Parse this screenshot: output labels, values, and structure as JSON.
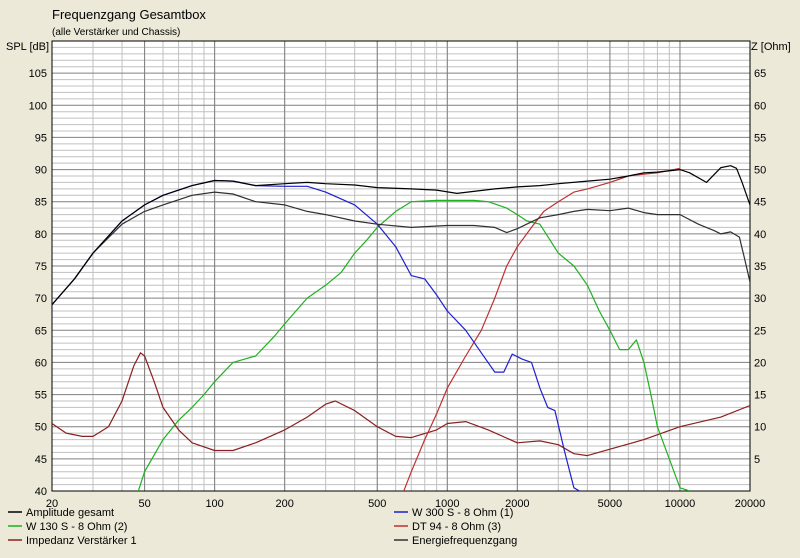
{
  "chart_data": {
    "type": "line",
    "title": "Frequenzgang Gesamtbox",
    "subtitle": "(alle Verstärker und Chassis)",
    "ylabel_left": "SPL [dB]",
    "ylabel_right": "Z [Ohm]",
    "xscale": "log",
    "xlim": [
      20,
      20000
    ],
    "ylim_left": [
      40,
      110
    ],
    "ylim_right": [
      0,
      70
    ],
    "grid": true,
    "legend_position": "bottom",
    "x_tick_labels": [
      "20",
      "50",
      "100",
      "200",
      "500",
      "1000",
      "2000",
      "5000",
      "10000",
      "20000"
    ],
    "y_left_tick_labels": [
      "40",
      "45",
      "50",
      "55",
      "60",
      "65",
      "70",
      "75",
      "80",
      "85",
      "90",
      "95",
      "100",
      "105"
    ],
    "y_right_tick_labels": [
      "5",
      "10",
      "15",
      "20",
      "25",
      "30",
      "35",
      "40",
      "45",
      "50",
      "55",
      "60",
      "65"
    ],
    "colors": {
      "plot_background": "#ffffff",
      "window_background": "#ece9d8",
      "major_grid": "#808080",
      "minor_grid": "#c0c0c0"
    },
    "series": [
      {
        "name": "Amplitude gesamt",
        "color": "#000000",
        "axis": "left",
        "points": [
          [
            20,
            69
          ],
          [
            25,
            73
          ],
          [
            30,
            77
          ],
          [
            40,
            82
          ],
          [
            50,
            84.5
          ],
          [
            60,
            86
          ],
          [
            80,
            87.5
          ],
          [
            100,
            88.3
          ],
          [
            120,
            88.2
          ],
          [
            150,
            87.5
          ],
          [
            200,
            87.8
          ],
          [
            250,
            88
          ],
          [
            300,
            87.8
          ],
          [
            400,
            87.6
          ],
          [
            500,
            87.2
          ],
          [
            700,
            87
          ],
          [
            900,
            86.8
          ],
          [
            1100,
            86.3
          ],
          [
            1300,
            86.6
          ],
          [
            1600,
            87
          ],
          [
            2000,
            87.3
          ],
          [
            2500,
            87.5
          ],
          [
            3000,
            87.8
          ],
          [
            4000,
            88.2
          ],
          [
            5000,
            88.5
          ],
          [
            6000,
            89
          ],
          [
            7000,
            89.5
          ],
          [
            8000,
            89.6
          ],
          [
            10000,
            90
          ],
          [
            11000,
            89.5
          ],
          [
            13000,
            88
          ],
          [
            15000,
            90.3
          ],
          [
            16500,
            90.6
          ],
          [
            17500,
            90.2
          ],
          [
            18500,
            88
          ],
          [
            20000,
            84.5
          ]
        ]
      },
      {
        "name": "W 300 S - 8 Ohm (1)",
        "color": "#1f1fcf",
        "axis": "left",
        "points": [
          [
            20,
            69
          ],
          [
            25,
            73
          ],
          [
            30,
            77
          ],
          [
            40,
            82
          ],
          [
            50,
            84.5
          ],
          [
            60,
            86
          ],
          [
            80,
            87.5
          ],
          [
            100,
            88.3
          ],
          [
            120,
            88.2
          ],
          [
            150,
            87.5
          ],
          [
            200,
            87.4
          ],
          [
            250,
            87.4
          ],
          [
            300,
            86.5
          ],
          [
            400,
            84.5
          ],
          [
            500,
            81.5
          ],
          [
            600,
            78
          ],
          [
            700,
            73.5
          ],
          [
            800,
            73
          ],
          [
            900,
            70.5
          ],
          [
            1000,
            68
          ],
          [
            1200,
            65
          ],
          [
            1400,
            61.5
          ],
          [
            1600,
            58.5
          ],
          [
            1750,
            58.5
          ],
          [
            1900,
            61.3
          ],
          [
            2100,
            60.5
          ],
          [
            2300,
            60
          ],
          [
            2500,
            56
          ],
          [
            2700,
            53
          ],
          [
            2900,
            52.5
          ],
          [
            3200,
            46
          ],
          [
            3500,
            40.5
          ],
          [
            3700,
            40
          ]
        ]
      },
      {
        "name": "DT 94 - 8 Ohm (3)",
        "color": "#c03030",
        "axis": "left",
        "points": [
          [
            650,
            40
          ],
          [
            700,
            43
          ],
          [
            800,
            48
          ],
          [
            900,
            52
          ],
          [
            1000,
            56
          ],
          [
            1200,
            61
          ],
          [
            1400,
            65
          ],
          [
            1600,
            70
          ],
          [
            1800,
            75
          ],
          [
            2000,
            78
          ],
          [
            2300,
            81
          ],
          [
            2600,
            83.5
          ],
          [
            3000,
            85
          ],
          [
            3500,
            86.5
          ],
          [
            4000,
            87
          ],
          [
            5000,
            88
          ],
          [
            6000,
            89
          ],
          [
            7000,
            89.3
          ],
          [
            8000,
            89.5
          ],
          [
            10000,
            90.2
          ]
        ]
      },
      {
        "name": "W 130 S - 8 Ohm (2)",
        "color": "#20b020",
        "axis": "left",
        "points": [
          [
            47,
            40
          ],
          [
            50,
            43
          ],
          [
            60,
            48
          ],
          [
            70,
            51
          ],
          [
            80,
            53
          ],
          [
            90,
            55
          ],
          [
            100,
            57
          ],
          [
            120,
            60
          ],
          [
            150,
            61
          ],
          [
            180,
            64
          ],
          [
            200,
            66
          ],
          [
            250,
            70
          ],
          [
            300,
            72
          ],
          [
            350,
            74
          ],
          [
            400,
            77
          ],
          [
            450,
            79
          ],
          [
            500,
            81
          ],
          [
            600,
            83.5
          ],
          [
            700,
            85
          ],
          [
            900,
            85.2
          ],
          [
            1100,
            85.2
          ],
          [
            1300,
            85.2
          ],
          [
            1500,
            85
          ],
          [
            1800,
            84
          ],
          [
            2000,
            83
          ],
          [
            2200,
            82
          ],
          [
            2500,
            81.5
          ],
          [
            3000,
            77
          ],
          [
            3500,
            75
          ],
          [
            4000,
            72
          ],
          [
            4500,
            68
          ],
          [
            5000,
            65
          ],
          [
            5500,
            62
          ],
          [
            6000,
            62
          ],
          [
            6500,
            63.5
          ],
          [
            7000,
            60
          ],
          [
            7500,
            55
          ],
          [
            8000,
            50
          ],
          [
            9000,
            45
          ],
          [
            10000,
            40.5
          ],
          [
            11000,
            40
          ]
        ]
      },
      {
        "name": "Energiefrequenzgang",
        "color": "#303030",
        "axis": "left",
        "points": [
          [
            20,
            69
          ],
          [
            25,
            73
          ],
          [
            30,
            77
          ],
          [
            40,
            81.5
          ],
          [
            50,
            83.5
          ],
          [
            60,
            84.5
          ],
          [
            80,
            86
          ],
          [
            100,
            86.5
          ],
          [
            120,
            86.2
          ],
          [
            150,
            85
          ],
          [
            200,
            84.5
          ],
          [
            250,
            83.5
          ],
          [
            300,
            83
          ],
          [
            400,
            82
          ],
          [
            500,
            81.5
          ],
          [
            700,
            81
          ],
          [
            1000,
            81.3
          ],
          [
            1300,
            81.3
          ],
          [
            1600,
            81
          ],
          [
            1800,
            80.2
          ],
          [
            2000,
            80.8
          ],
          [
            2500,
            82.5
          ],
          [
            3000,
            83
          ],
          [
            3500,
            83.5
          ],
          [
            4000,
            83.8
          ],
          [
            5000,
            83.6
          ],
          [
            6000,
            84
          ],
          [
            7000,
            83.3
          ],
          [
            8000,
            83
          ],
          [
            10000,
            83
          ],
          [
            12000,
            81.5
          ],
          [
            14000,
            80.5
          ],
          [
            15000,
            80
          ],
          [
            16500,
            80.3
          ],
          [
            18000,
            79.5
          ],
          [
            19000,
            76
          ],
          [
            20000,
            72.5
          ]
        ]
      },
      {
        "name": "Impedanz Verstärker 1",
        "color": "#8b2020",
        "axis": "right",
        "points": [
          [
            20,
            10.5
          ],
          [
            23,
            9
          ],
          [
            27,
            8.5
          ],
          [
            30,
            8.5
          ],
          [
            35,
            10
          ],
          [
            40,
            14
          ],
          [
            45,
            19.5
          ],
          [
            48,
            21.5
          ],
          [
            50,
            21
          ],
          [
            55,
            17
          ],
          [
            60,
            13
          ],
          [
            70,
            9.5
          ],
          [
            80,
            7.5
          ],
          [
            100,
            6.3
          ],
          [
            120,
            6.3
          ],
          [
            150,
            7.5
          ],
          [
            200,
            9.5
          ],
          [
            250,
            11.5
          ],
          [
            300,
            13.5
          ],
          [
            330,
            14
          ],
          [
            400,
            12.5
          ],
          [
            500,
            10
          ],
          [
            600,
            8.5
          ],
          [
            700,
            8.3
          ],
          [
            900,
            9.5
          ],
          [
            1000,
            10.5
          ],
          [
            1200,
            10.8
          ],
          [
            1500,
            9.5
          ],
          [
            2000,
            7.5
          ],
          [
            2500,
            7.8
          ],
          [
            3000,
            7.2
          ],
          [
            3500,
            5.8
          ],
          [
            4000,
            5.5
          ],
          [
            5000,
            6.5
          ],
          [
            7000,
            8
          ],
          [
            10000,
            10
          ],
          [
            15000,
            11.5
          ],
          [
            20000,
            13.3
          ]
        ]
      }
    ]
  }
}
